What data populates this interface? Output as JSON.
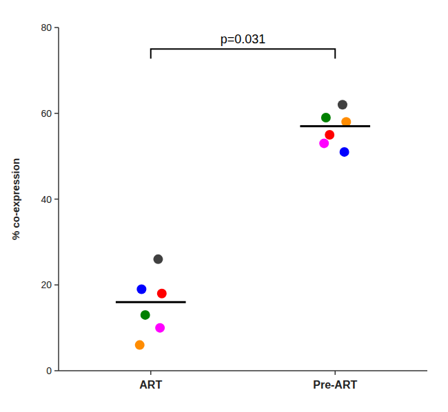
{
  "chart_data": {
    "type": "strip",
    "y_label": "% co-expression",
    "categories": [
      "ART",
      "Pre-ART"
    ],
    "values": [
      [
        26,
        19,
        18,
        13,
        10,
        6
      ],
      [
        62,
        59,
        58,
        55,
        51,
        53
      ]
    ],
    "colors": [
      [
        "#404040",
        "#0000ff",
        "#ff0000",
        "#008000",
        "#ff00ff",
        "#ff8c00"
      ],
      [
        "#404040",
        "#008000",
        "#ff8c00",
        "#ff0000",
        "#0000ff",
        "#ff00ff"
      ]
    ],
    "medians": [
      16,
      57
    ],
    "annotations": [
      {
        "text": "p=0.031",
        "y": 75
      }
    ],
    "ylim": [
      0,
      80
    ],
    "yticks": [
      0,
      20,
      40,
      60,
      80
    ],
    "grid": false
  }
}
